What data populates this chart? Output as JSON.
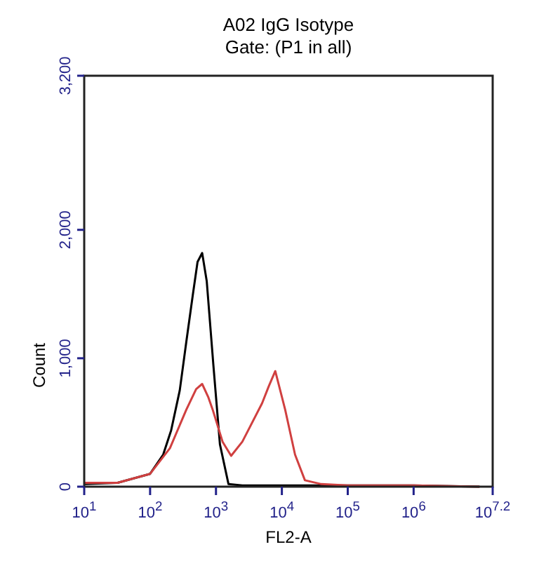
{
  "chart_data": {
    "type": "line",
    "title": "A02 IgG Isotype",
    "subtitle": "Gate: (P1 in all)",
    "xlabel": "FL2-A",
    "ylabel": "Count",
    "log": "x",
    "grid": false,
    "xlim": [
      10,
      15848932
    ],
    "ylim": [
      0,
      3200
    ],
    "xticks": [
      {
        "value": 10,
        "label": "10$^{1}$"
      },
      {
        "value": 100,
        "label": "10$^{2}$"
      },
      {
        "value": 1000,
        "label": "10$^{3}$"
      },
      {
        "value": 10000,
        "label": "10$^{4}$"
      },
      {
        "value": 100000,
        "label": "10$^{5}$"
      },
      {
        "value": 1000000,
        "label": "10$^{6}$"
      },
      {
        "value": 15848932,
        "label": "10$^{7.2}$"
      }
    ],
    "yticks": [
      {
        "value": 0,
        "label": "0"
      },
      {
        "value": 1000,
        "label": "1,000"
      },
      {
        "value": 2000,
        "label": "2,000"
      },
      {
        "value": 3200,
        "label": "3,200"
      }
    ],
    "series": [
      {
        "color": "#000000",
        "x": [
          10,
          32,
          100,
          158,
          209,
          282,
          355,
          447,
          525,
          617,
          724,
          912,
          1148,
          1549,
          2512,
          10000,
          100000,
          1000000,
          10000000
        ],
        "values": [
          20,
          30,
          100,
          250,
          440,
          750,
          1130,
          1500,
          1750,
          1820,
          1600,
          950,
          330,
          20,
          10,
          10,
          10,
          10,
          0
        ]
      },
      {
        "color": "#d04040",
        "x": [
          10,
          32,
          100,
          200,
          355,
          500,
          617,
          760,
          891,
          1259,
          1698,
          2512,
          3162,
          5012,
          6310,
          7943,
          11220,
          15849,
          22387,
          39811,
          100000,
          1000000,
          10000000
        ],
        "values": [
          30,
          30,
          100,
          300,
          600,
          760,
          800,
          700,
          600,
          350,
          240,
          350,
          450,
          650,
          780,
          900,
          600,
          250,
          50,
          20,
          10,
          10,
          0
        ]
      }
    ]
  }
}
